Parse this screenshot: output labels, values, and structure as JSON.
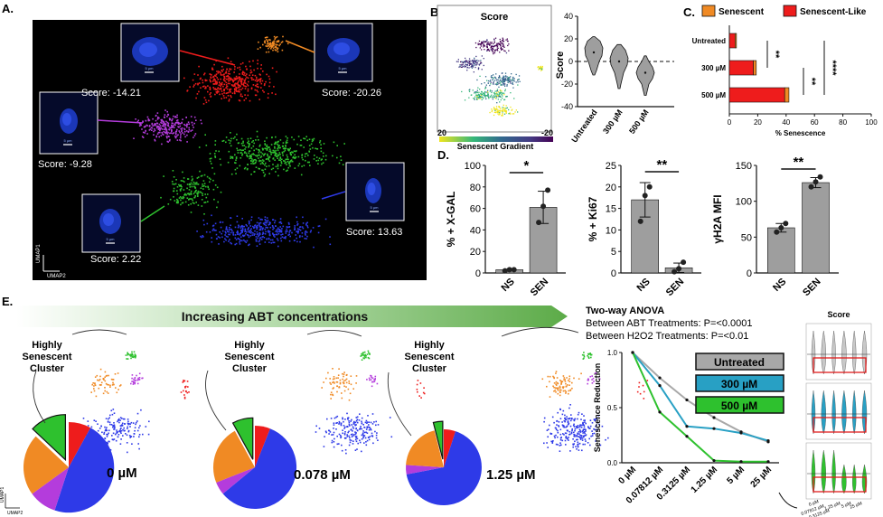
{
  "panels": {
    "a": {
      "letter": "A.",
      "scores": [
        "Score: -14.21",
        "Score: -20.26",
        "Score: -9.28",
        "Score: 13.63",
        "Score: 2.22"
      ],
      "scale": "5 µm",
      "axis_y": "UMAP1",
      "axis_x": "UMAP2",
      "colors": {
        "red": "#ee1c1c",
        "orange": "#f08a24",
        "purple": "#b43cdc",
        "green": "#2ec12e",
        "blue": "#2e3ae8"
      }
    },
    "b": {
      "letter": "B.",
      "umap_title": "Score",
      "gradient_left": "20",
      "gradient_right": "-20",
      "gradient_label": "Senescent Gradient",
      "gradient_colors": [
        "#f1e51d",
        "#35b779",
        "#31688e",
        "#443983",
        "#440154"
      ]
    },
    "c": {
      "letter": "C.",
      "legend": [
        "Senescent",
        "Senescent-Like"
      ]
    },
    "d": {
      "letter": "D."
    },
    "e": {
      "letter": "E.",
      "banner": "Increasing ABT concentrations",
      "cluster_label_1": "Highly",
      "cluster_label_2": "Senescent",
      "cluster_label_3": "Cluster",
      "concentrations": [
        "0 µM",
        "0.078 µM",
        "1.25 µM"
      ],
      "anova_title": "Two-way ANOVA",
      "anova_line1": "Between ABT Treatments: P=<0.0001",
      "anova_line2": "Between H2O2 Treatments: P=<0.01",
      "legend": [
        "Untreated",
        "300 µM",
        "500 µM"
      ],
      "score_title": "Score",
      "mini_x": [
        "0 µM",
        "0.07812 µM",
        "0.3125 µM",
        "1.25 µM",
        "5 µM",
        "25 µM"
      ]
    }
  },
  "chart_data": [
    {
      "type": "violin",
      "panel": "B",
      "categories": [
        "Untreated",
        "300 µM",
        "500 µM"
      ],
      "medians": [
        8,
        0,
        -10
      ],
      "ylabel": "Score",
      "ylim": [
        -40,
        40
      ],
      "yticks": [
        -40,
        -20,
        0,
        20,
        40
      ]
    },
    {
      "type": "bar",
      "panel": "C",
      "orientation": "horizontal",
      "categories": [
        "Untreated",
        "300 µM",
        "500 µM"
      ],
      "series": [
        {
          "name": "Senescent",
          "values": [
            1,
            2,
            3
          ]
        },
        {
          "name": "Senescent-Like",
          "values": [
            4,
            17,
            39
          ]
        }
      ],
      "xlabel": "% Senescence",
      "xlim": [
        0,
        100
      ],
      "xticks": [
        0,
        20,
        40,
        60,
        80,
        100
      ],
      "significance": [
        "**",
        "**",
        "****"
      ]
    },
    {
      "type": "bar",
      "panel": "D1",
      "categories": [
        "NS",
        "SEN"
      ],
      "values": [
        3,
        61
      ],
      "points": [
        [
          2,
          3,
          3
        ],
        [
          47,
          62,
          77
        ]
      ],
      "ylabel": "% + X-GAL",
      "ylim": [
        0,
        100
      ],
      "yticks": [
        0,
        20,
        40,
        60,
        80,
        100
      ],
      "significance": "*"
    },
    {
      "type": "bar",
      "panel": "D2",
      "categories": [
        "NS",
        "SEN"
      ],
      "values": [
        17,
        1.2
      ],
      "points": [
        [
          12,
          18,
          20
        ],
        [
          0.3,
          1,
          2.5
        ]
      ],
      "ylabel": "% + Ki67",
      "ylim": [
        0,
        25
      ],
      "yticks": [
        0,
        5,
        10,
        15,
        20,
        25
      ],
      "significance": "**"
    },
    {
      "type": "bar",
      "panel": "D3",
      "categories": [
        "NS",
        "SEN"
      ],
      "values": [
        63,
        126
      ],
      "points": [
        [
          57,
          63,
          69
        ],
        [
          120,
          127,
          134
        ]
      ],
      "ylabel": "γH2A MFI",
      "ylim": [
        0,
        150
      ],
      "yticks": [
        0,
        50,
        100,
        150
      ],
      "significance": "**"
    },
    {
      "type": "pie",
      "panel": "E",
      "labels": [
        "red",
        "blue",
        "purple",
        "orange",
        "green"
      ],
      "pies": [
        [
          8,
          47,
          10,
          22,
          13
        ],
        [
          6,
          58,
          5,
          23,
          8
        ],
        [
          5,
          67,
          4,
          20,
          4
        ]
      ]
    },
    {
      "type": "line",
      "panel": "E",
      "x": [
        "0 µM",
        "0.07812 µM",
        "0.3125 µM",
        "1.25 µM",
        "5 µM",
        "25 µM"
      ],
      "series": [
        {
          "name": "Untreated",
          "values": [
            1,
            0.77,
            0.57,
            0.41,
            0.28,
            0.19
          ]
        },
        {
          "name": "300 µM",
          "values": [
            1,
            0.7,
            0.33,
            0.31,
            0.27,
            0.2
          ]
        },
        {
          "name": "500 µM",
          "values": [
            1,
            0.46,
            0.24,
            0.02,
            0.01,
            0.01
          ]
        }
      ],
      "ylabel": "Senescence Reduction",
      "ylim": [
        0,
        1
      ],
      "yticks": [
        0.0,
        0.5,
        1.0
      ]
    }
  ]
}
